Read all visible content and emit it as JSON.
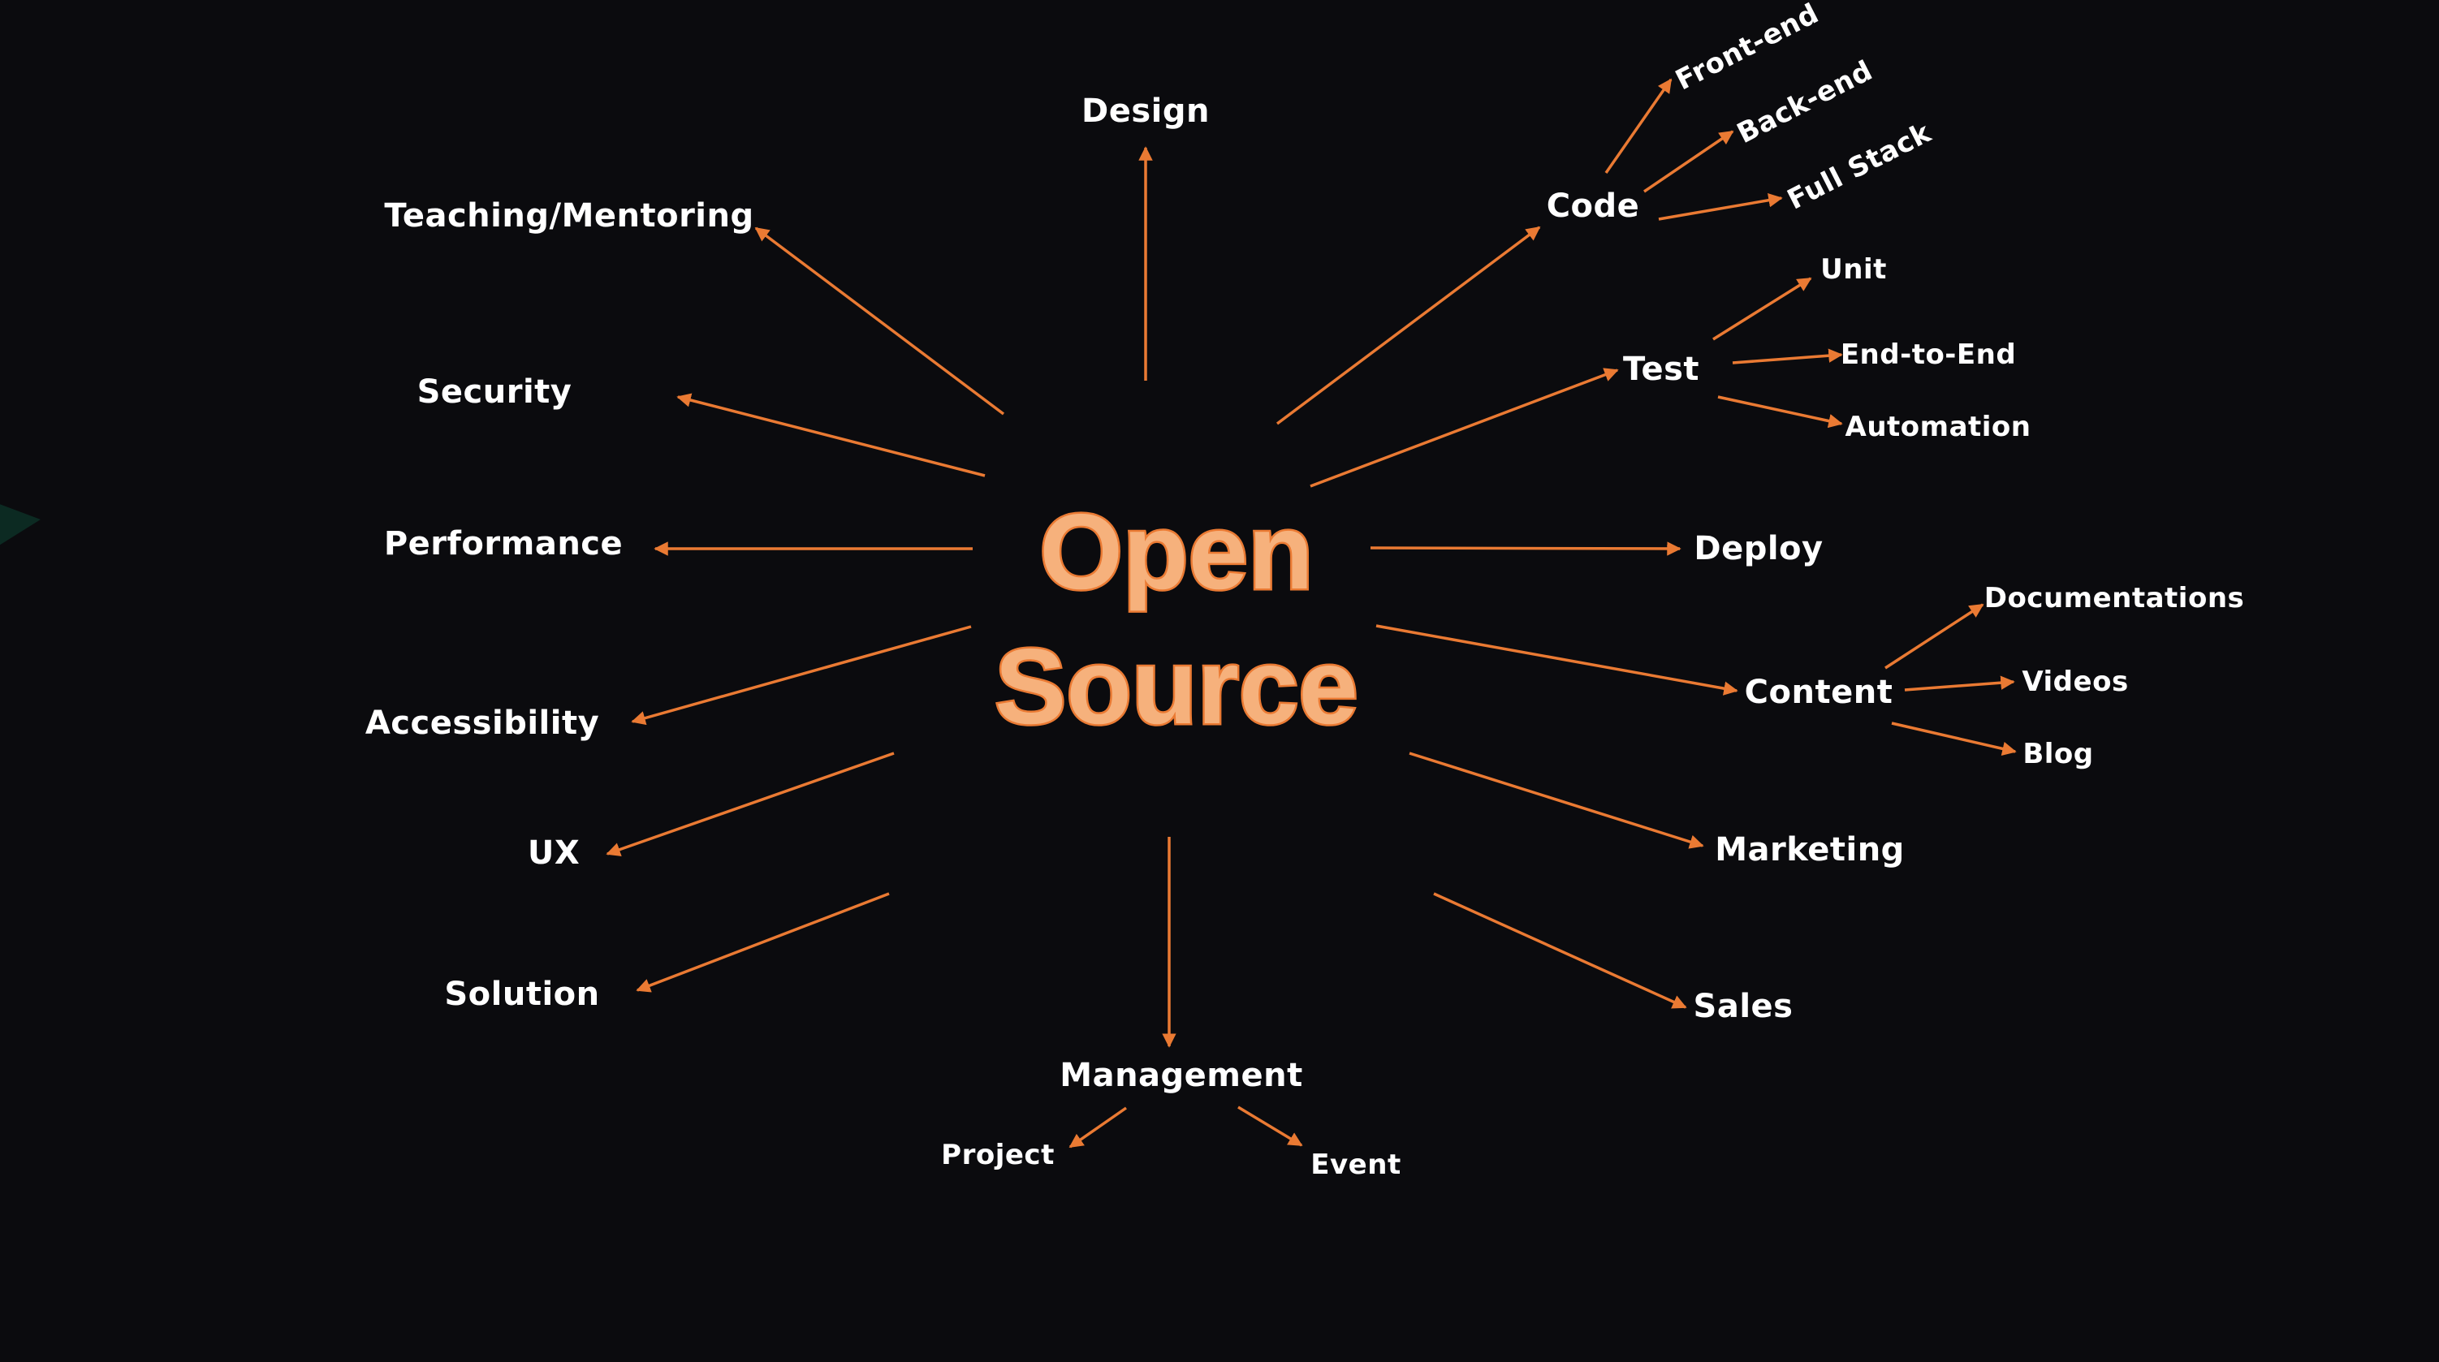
{
  "center": {
    "line1": "Open",
    "line2": "Source"
  },
  "colors": {
    "background": "#0b0b0e",
    "arrow": "#ea7a33",
    "title_fill": "#f6b17c",
    "title_stroke": "#ea7a33",
    "label": "#ffffff"
  },
  "nodes": {
    "design": "Design",
    "teaching": "Teaching/Mentoring",
    "security": "Security",
    "performance": "Performance",
    "accessibility": "Accessibility",
    "ux": "UX",
    "solution": "Solution",
    "management": "Management",
    "project": "Project",
    "event": "Event",
    "code": "Code",
    "front_end": "Front-end",
    "back_end": "Back-end",
    "full_stack": "Full Stack",
    "test": "Test",
    "unit": "Unit",
    "end_to_end": "End-to-End",
    "automation": "Automation",
    "deploy": "Deploy",
    "content": "Content",
    "documentations": "Documentations",
    "videos": "Videos",
    "blog": "Blog",
    "marketing": "Marketing",
    "sales": "Sales"
  }
}
